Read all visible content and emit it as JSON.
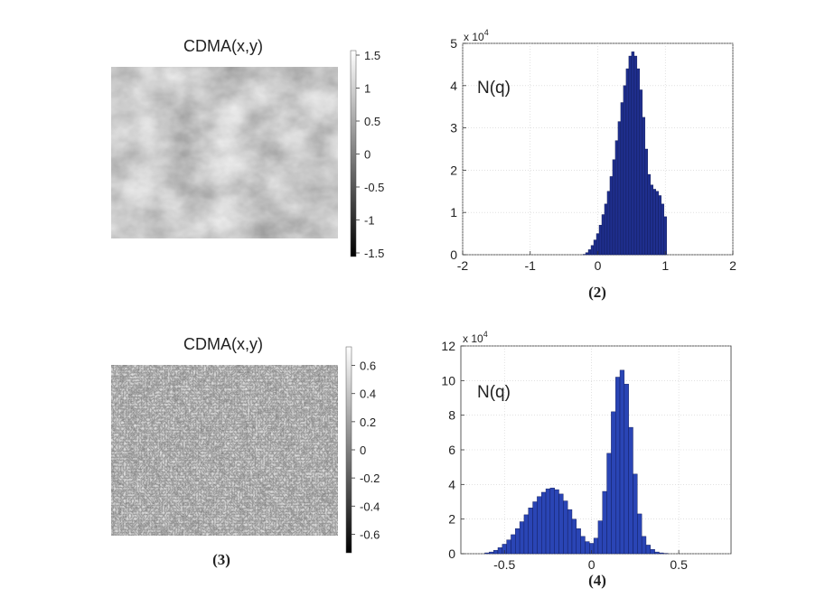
{
  "chart_data": [
    {
      "type": "heatmap",
      "title": "CDMA(x,y)",
      "colorbar": {
        "ticks": [
          "1.5",
          "1",
          "0.5",
          "0",
          "-0.5",
          "-1",
          "-1.5"
        ],
        "range": [
          -1.5,
          1.5
        ],
        "colormap": "gray"
      },
      "texture": "smooth-clouds",
      "caption": ""
    },
    {
      "type": "bar",
      "title": "N(q)",
      "caption": "(2)",
      "multiplier": "x 10",
      "multiplier_exp": "4",
      "color": "#1f2f8e",
      "xlim": [
        -2,
        2
      ],
      "ylim": [
        0,
        5
      ],
      "xticks": [
        "-2",
        "-1",
        "0",
        "1",
        "2"
      ],
      "yticks": [
        "0",
        "1",
        "2",
        "3",
        "4",
        "5"
      ],
      "grid": true,
      "bins": [
        {
          "x": -0.2,
          "y": 0.01
        },
        {
          "x": -0.16,
          "y": 0.05
        },
        {
          "x": -0.12,
          "y": 0.12
        },
        {
          "x": -0.08,
          "y": 0.22
        },
        {
          "x": -0.04,
          "y": 0.35
        },
        {
          "x": 0.0,
          "y": 0.5
        },
        {
          "x": 0.04,
          "y": 0.7
        },
        {
          "x": 0.08,
          "y": 0.95
        },
        {
          "x": 0.12,
          "y": 1.2
        },
        {
          "x": 0.16,
          "y": 1.5
        },
        {
          "x": 0.2,
          "y": 1.85
        },
        {
          "x": 0.24,
          "y": 2.25
        },
        {
          "x": 0.28,
          "y": 2.7
        },
        {
          "x": 0.32,
          "y": 3.15
        },
        {
          "x": 0.36,
          "y": 3.6
        },
        {
          "x": 0.4,
          "y": 4.0
        },
        {
          "x": 0.44,
          "y": 4.4
        },
        {
          "x": 0.48,
          "y": 4.7
        },
        {
          "x": 0.52,
          "y": 4.8
        },
        {
          "x": 0.56,
          "y": 4.7
        },
        {
          "x": 0.6,
          "y": 4.4
        },
        {
          "x": 0.64,
          "y": 3.9
        },
        {
          "x": 0.68,
          "y": 3.25
        },
        {
          "x": 0.72,
          "y": 2.5
        },
        {
          "x": 0.76,
          "y": 1.9
        },
        {
          "x": 0.8,
          "y": 1.65
        },
        {
          "x": 0.84,
          "y": 1.55
        },
        {
          "x": 0.88,
          "y": 1.5
        },
        {
          "x": 0.92,
          "y": 1.4
        },
        {
          "x": 0.96,
          "y": 1.2
        },
        {
          "x": 1.0,
          "y": 0.9
        }
      ],
      "bin_width": 0.04
    },
    {
      "type": "heatmap",
      "title": "CDMA(x,y)",
      "colorbar": {
        "ticks": [
          "0.6",
          "0.4",
          "0.2",
          "0",
          "-0.2",
          "-0.4",
          "-0.6"
        ],
        "range": [
          -0.7,
          0.7
        ],
        "colormap": "gray"
      },
      "texture": "fine-noise",
      "caption": "(3)"
    },
    {
      "type": "bar",
      "title": "N(q)",
      "caption": "(4)",
      "multiplier": "x 10",
      "multiplier_exp": "4",
      "color": "#2a45b5",
      "xlim": [
        -0.75,
        0.8
      ],
      "ylim": [
        0,
        12
      ],
      "xticks": [
        "-0.5",
        "0",
        "0.5"
      ],
      "xtick_values": [
        -0.5,
        0,
        0.5
      ],
      "yticks": [
        "0",
        "2",
        "4",
        "6",
        "8",
        "10",
        "12"
      ],
      "grid": true,
      "bins": [
        {
          "x": -0.6,
          "y": 0.05
        },
        {
          "x": -0.575,
          "y": 0.1
        },
        {
          "x": -0.55,
          "y": 0.2
        },
        {
          "x": -0.525,
          "y": 0.35
        },
        {
          "x": -0.5,
          "y": 0.55
        },
        {
          "x": -0.475,
          "y": 0.8
        },
        {
          "x": -0.45,
          "y": 1.1
        },
        {
          "x": -0.425,
          "y": 1.45
        },
        {
          "x": -0.4,
          "y": 1.85
        },
        {
          "x": -0.375,
          "y": 2.25
        },
        {
          "x": -0.35,
          "y": 2.65
        },
        {
          "x": -0.325,
          "y": 3.0
        },
        {
          "x": -0.3,
          "y": 3.3
        },
        {
          "x": -0.275,
          "y": 3.55
        },
        {
          "x": -0.25,
          "y": 3.75
        },
        {
          "x": -0.225,
          "y": 3.8
        },
        {
          "x": -0.2,
          "y": 3.7
        },
        {
          "x": -0.175,
          "y": 3.45
        },
        {
          "x": -0.15,
          "y": 3.05
        },
        {
          "x": -0.125,
          "y": 2.55
        },
        {
          "x": -0.1,
          "y": 2.0
        },
        {
          "x": -0.075,
          "y": 1.45
        },
        {
          "x": -0.05,
          "y": 1.0
        },
        {
          "x": -0.025,
          "y": 0.7
        },
        {
          "x": 0.0,
          "y": 0.6
        },
        {
          "x": 0.025,
          "y": 0.9
        },
        {
          "x": 0.05,
          "y": 1.9
        },
        {
          "x": 0.075,
          "y": 3.6
        },
        {
          "x": 0.1,
          "y": 5.8
        },
        {
          "x": 0.125,
          "y": 8.2
        },
        {
          "x": 0.15,
          "y": 10.2
        },
        {
          "x": 0.175,
          "y": 10.6
        },
        {
          "x": 0.2,
          "y": 9.8
        },
        {
          "x": 0.225,
          "y": 7.3
        },
        {
          "x": 0.25,
          "y": 4.6
        },
        {
          "x": 0.275,
          "y": 2.3
        },
        {
          "x": 0.3,
          "y": 1.0
        },
        {
          "x": 0.325,
          "y": 0.5
        },
        {
          "x": 0.35,
          "y": 0.25
        },
        {
          "x": 0.375,
          "y": 0.1
        },
        {
          "x": 0.4,
          "y": 0.05
        },
        {
          "x": 0.425,
          "y": 0.02
        }
      ],
      "bin_width": 0.025
    }
  ]
}
